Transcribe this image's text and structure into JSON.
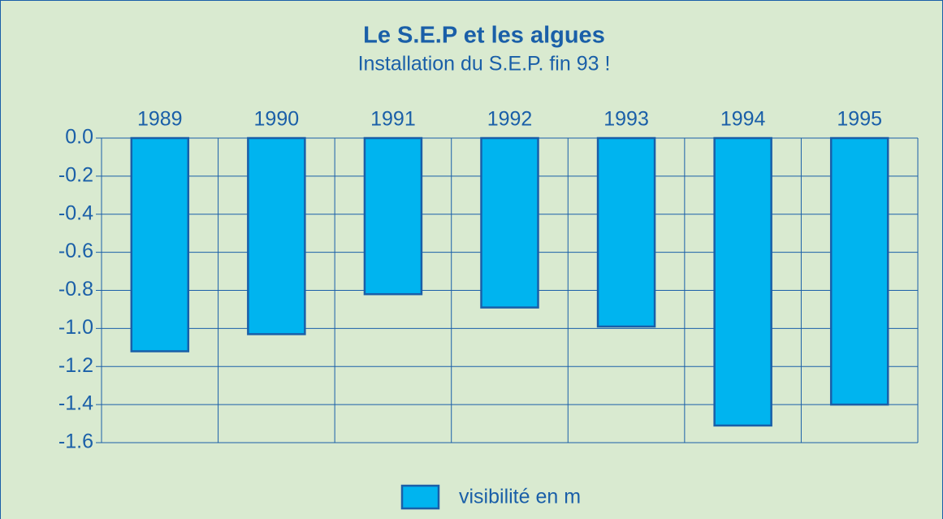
{
  "chart_data": {
    "type": "bar",
    "title": "Le S.E.P et les algues",
    "subtitle": "Installation du S.E.P. fin 93 !",
    "categories": [
      "1989",
      "1990",
      "1991",
      "1992",
      "1993",
      "1994",
      "1995"
    ],
    "series": [
      {
        "name": "visibilité en m",
        "color": "#00b4ef",
        "values": [
          -1.12,
          -1.03,
          -0.82,
          -0.89,
          -0.99,
          -1.51,
          -1.4
        ]
      }
    ],
    "ylim": [
      -1.6,
      0
    ],
    "yticks": [
      {
        "value": 0,
        "label": "0.0"
      },
      {
        "value": -0.2,
        "label": "-0.2"
      },
      {
        "value": -0.4,
        "label": "-0.4"
      },
      {
        "value": -0.6,
        "label": "-0.6"
      },
      {
        "value": -0.8,
        "label": "-0.8"
      },
      {
        "value": -1.0,
        "label": "-1.0"
      },
      {
        "value": -1.2,
        "label": "-1.2"
      },
      {
        "value": -1.4,
        "label": "-1.4"
      },
      {
        "value": -1.6,
        "label": "-1.6"
      }
    ],
    "grid": true,
    "legend": "bottom"
  }
}
